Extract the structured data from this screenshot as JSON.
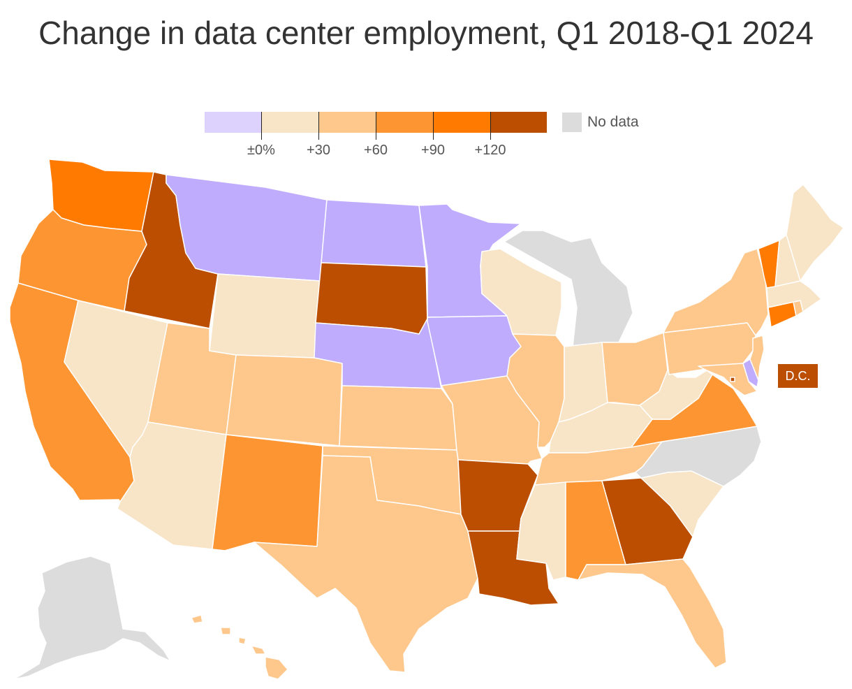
{
  "title": "Change in data center employment, Q1 2018-Q1 2024",
  "legend": {
    "ticks": [
      "±0%",
      "+30",
      "+60",
      "+90",
      "+120"
    ],
    "no_data_label": "No data",
    "bins": [
      {
        "range": "below 0%",
        "color": "#ddd1fd"
      },
      {
        "range": "0 to +30",
        "color": "#f8e4c6"
      },
      {
        "range": "+30 to +60",
        "color": "#fec78c"
      },
      {
        "range": "+60 to +90",
        "color": "#fd9632"
      },
      {
        "range": "+90 to +120",
        "color": "#fe7a00"
      },
      {
        "range": "+120 and above",
        "color": "#bb4e00"
      }
    ],
    "no_data_color": "#dcdcdc"
  },
  "map_colors": {
    "neg": "#c0acfd",
    "b1": "#f8e4c6",
    "b2": "#fec78c",
    "b3": "#fd9632",
    "b4": "#fe7a00",
    "b5": "#bb4e00",
    "nodata": "#dcdcdc"
  },
  "states": [
    {
      "abbr": "WA",
      "bin": "b4"
    },
    {
      "abbr": "OR",
      "bin": "b3"
    },
    {
      "abbr": "CA",
      "bin": "b3"
    },
    {
      "abbr": "ID",
      "bin": "b5"
    },
    {
      "abbr": "NV",
      "bin": "b1"
    },
    {
      "abbr": "AZ",
      "bin": "b1"
    },
    {
      "abbr": "UT",
      "bin": "b2"
    },
    {
      "abbr": "MT",
      "bin": "neg"
    },
    {
      "abbr": "WY",
      "bin": "b1"
    },
    {
      "abbr": "CO",
      "bin": "b2"
    },
    {
      "abbr": "NM",
      "bin": "b3"
    },
    {
      "abbr": "ND",
      "bin": "neg"
    },
    {
      "abbr": "SD",
      "bin": "b5"
    },
    {
      "abbr": "NE",
      "bin": "neg"
    },
    {
      "abbr": "KS",
      "bin": "b2"
    },
    {
      "abbr": "OK",
      "bin": "b2"
    },
    {
      "abbr": "TX",
      "bin": "b2"
    },
    {
      "abbr": "MN",
      "bin": "neg"
    },
    {
      "abbr": "IA",
      "bin": "neg"
    },
    {
      "abbr": "MO",
      "bin": "b2"
    },
    {
      "abbr": "AR",
      "bin": "b5"
    },
    {
      "abbr": "LA",
      "bin": "b5"
    },
    {
      "abbr": "WI",
      "bin": "b1"
    },
    {
      "abbr": "IL",
      "bin": "b2"
    },
    {
      "abbr": "MI",
      "bin": "nodata"
    },
    {
      "abbr": "IN",
      "bin": "b1"
    },
    {
      "abbr": "OH",
      "bin": "b2"
    },
    {
      "abbr": "KY",
      "bin": "b1"
    },
    {
      "abbr": "TN",
      "bin": "b2"
    },
    {
      "abbr": "MS",
      "bin": "b1"
    },
    {
      "abbr": "AL",
      "bin": "b3"
    },
    {
      "abbr": "GA",
      "bin": "b5"
    },
    {
      "abbr": "FL",
      "bin": "b2"
    },
    {
      "abbr": "SC",
      "bin": "b1"
    },
    {
      "abbr": "NC",
      "bin": "nodata"
    },
    {
      "abbr": "VA",
      "bin": "b3"
    },
    {
      "abbr": "WV",
      "bin": "b1"
    },
    {
      "abbr": "PA",
      "bin": "b2"
    },
    {
      "abbr": "NY",
      "bin": "b2"
    },
    {
      "abbr": "NJ",
      "bin": "b2"
    },
    {
      "abbr": "DE",
      "bin": "neg"
    },
    {
      "abbr": "MD",
      "bin": "b2"
    },
    {
      "abbr": "CT",
      "bin": "b4"
    },
    {
      "abbr": "RI",
      "bin": "b2"
    },
    {
      "abbr": "MA",
      "bin": "b1"
    },
    {
      "abbr": "VT",
      "bin": "b4"
    },
    {
      "abbr": "NH",
      "bin": "b1"
    },
    {
      "abbr": "ME",
      "bin": "b1"
    },
    {
      "abbr": "AK",
      "bin": "nodata"
    },
    {
      "abbr": "HI",
      "bin": "b2"
    },
    {
      "abbr": "DC",
      "bin": "b5"
    }
  ],
  "dc_label": "D.C."
}
